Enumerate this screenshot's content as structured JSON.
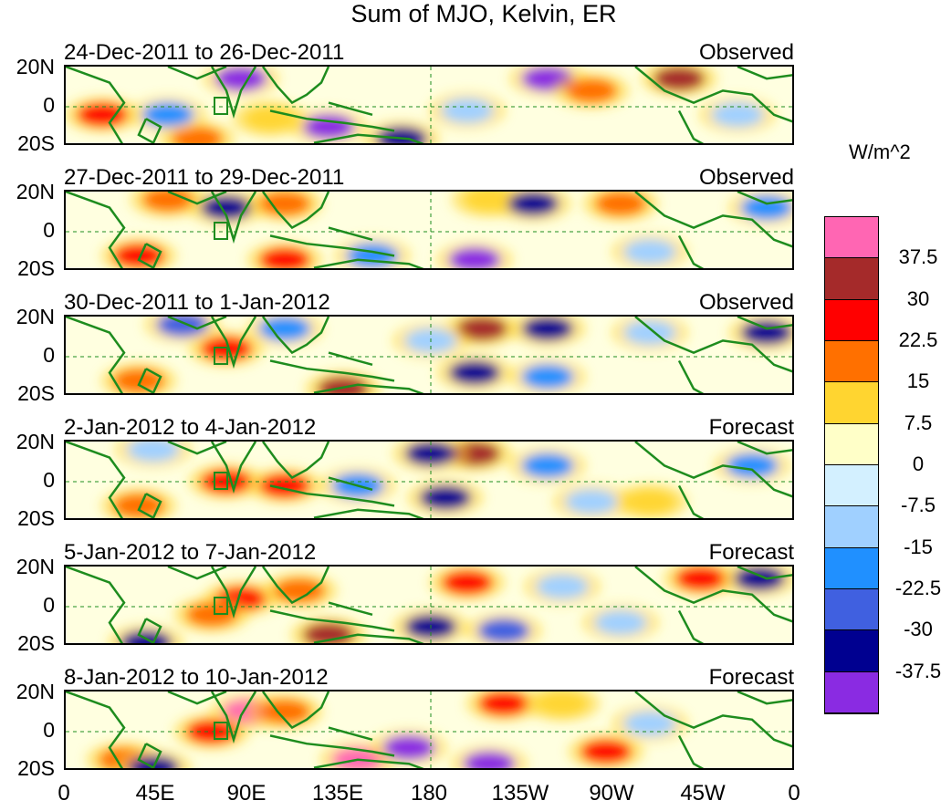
{
  "title": "Sum of MJO, Kelvin, ER",
  "colorbar": {
    "unit": "W/m^2",
    "colors": [
      "#ff66b3",
      "#a52a2a",
      "#ff0000",
      "#ff7000",
      "#ffd530",
      "#ffffc8",
      "#d3f0ff",
      "#a0d0ff",
      "#2090ff",
      "#4060e0",
      "#000090",
      "#8a2be2"
    ],
    "labels": [
      "37.5",
      "30",
      "22.5",
      "15",
      "7.5",
      "0",
      "-7.5",
      "-15",
      "-22.5",
      "-30",
      "-37.5"
    ]
  },
  "panels": [
    {
      "date_range": "24-Dec-2011 to 26-Dec-2011",
      "type": "Observed"
    },
    {
      "date_range": "27-Dec-2011 to 29-Dec-2011",
      "type": "Observed"
    },
    {
      "date_range": "30-Dec-2011 to 1-Jan-2012",
      "type": "Observed"
    },
    {
      "date_range": "2-Jan-2012 to 4-Jan-2012",
      "type": "Forecast"
    },
    {
      "date_range": "5-Jan-2012 to 7-Jan-2012",
      "type": "Forecast"
    },
    {
      "date_range": "8-Jan-2012 to 10-Jan-2012",
      "type": "Forecast"
    }
  ],
  "lat_labels": [
    "20N",
    "0",
    "20S"
  ],
  "lon_labels": [
    "0",
    "45E",
    "90E",
    "135E",
    "180",
    "135W",
    "90W",
    "45W",
    "0"
  ],
  "map_colors": {
    "coast": "#1e8c1e",
    "equator": "#1e8c1e"
  },
  "anomaly_blobs": [
    [
      [
        0.24,
        0.15,
        "#8a2be2"
      ],
      [
        0.66,
        0.15,
        "#8a2be2"
      ],
      [
        0.84,
        0.15,
        "#a52a2a"
      ],
      [
        0.05,
        0.6,
        "#ff0000"
      ],
      [
        0.18,
        0.9,
        "#ff7000"
      ],
      [
        0.36,
        0.75,
        "#8a2be2"
      ],
      [
        0.46,
        0.9,
        "#000090"
      ],
      [
        0.55,
        0.55,
        "#a0d0ff"
      ],
      [
        0.72,
        0.3,
        "#ff7000"
      ],
      [
        0.92,
        0.6,
        "#a0d0ff"
      ],
      [
        0.14,
        0.6,
        "#2090ff"
      ],
      [
        0.28,
        0.65,
        "#ffd530"
      ]
    ],
    [
      [
        0.14,
        0.1,
        "#ff7000"
      ],
      [
        0.22,
        0.2,
        "#000090"
      ],
      [
        0.3,
        0.15,
        "#ff7000"
      ],
      [
        0.58,
        0.1,
        "#ffd530"
      ],
      [
        0.64,
        0.15,
        "#000090"
      ],
      [
        0.76,
        0.15,
        "#ff7000"
      ],
      [
        0.1,
        0.8,
        "#ff0000"
      ],
      [
        0.3,
        0.85,
        "#ff0000"
      ],
      [
        0.42,
        0.8,
        "#2090ff"
      ],
      [
        0.56,
        0.85,
        "#8a2be2"
      ],
      [
        0.8,
        0.75,
        "#a0d0ff"
      ],
      [
        0.96,
        0.2,
        "#2090ff"
      ]
    ],
    [
      [
        0.16,
        0.1,
        "#4060e0"
      ],
      [
        0.22,
        0.4,
        "#ff0000"
      ],
      [
        0.3,
        0.15,
        "#2090ff"
      ],
      [
        0.57,
        0.15,
        "#a52a2a"
      ],
      [
        0.66,
        0.15,
        "#000090"
      ],
      [
        0.56,
        0.7,
        "#000090"
      ],
      [
        0.66,
        0.75,
        "#2090ff"
      ],
      [
        0.8,
        0.2,
        "#a0d0ff"
      ],
      [
        0.96,
        0.2,
        "#000090"
      ],
      [
        0.1,
        0.8,
        "#ff7000"
      ],
      [
        0.38,
        0.9,
        "#a52a2a"
      ],
      [
        0.5,
        0.3,
        "#a0d0ff"
      ]
    ],
    [
      [
        0.22,
        0.5,
        "#ff0000"
      ],
      [
        0.3,
        0.55,
        "#ff0000"
      ],
      [
        0.12,
        0.1,
        "#a0d0ff"
      ],
      [
        0.56,
        0.15,
        "#a52a2a"
      ],
      [
        0.5,
        0.15,
        "#000090"
      ],
      [
        0.52,
        0.7,
        "#000090"
      ],
      [
        0.66,
        0.3,
        "#2090ff"
      ],
      [
        0.8,
        0.75,
        "#ffd530"
      ],
      [
        0.94,
        0.3,
        "#2090ff"
      ],
      [
        0.1,
        0.8,
        "#ff7000"
      ],
      [
        0.4,
        0.55,
        "#2090ff"
      ],
      [
        0.72,
        0.75,
        "#a0d0ff"
      ]
    ],
    [
      [
        0.24,
        0.4,
        "#ff0000"
      ],
      [
        0.2,
        0.6,
        "#ff7000"
      ],
      [
        0.32,
        0.3,
        "#ff7000"
      ],
      [
        0.36,
        0.85,
        "#a52a2a"
      ],
      [
        0.55,
        0.2,
        "#ff0000"
      ],
      [
        0.5,
        0.75,
        "#000090"
      ],
      [
        0.6,
        0.8,
        "#4060e0"
      ],
      [
        0.87,
        0.15,
        "#ff0000"
      ],
      [
        0.95,
        0.15,
        "#000090"
      ],
      [
        0.11,
        0.95,
        "#000090"
      ],
      [
        0.76,
        0.7,
        "#a0d0ff"
      ],
      [
        0.68,
        0.25,
        "#a0d0ff"
      ]
    ],
    [
      [
        0.25,
        0.25,
        "#ff66b3"
      ],
      [
        0.2,
        0.5,
        "#ff0000"
      ],
      [
        0.3,
        0.25,
        "#ff7000"
      ],
      [
        0.4,
        0.85,
        "#ff66b3"
      ],
      [
        0.47,
        0.7,
        "#8a2be2"
      ],
      [
        0.58,
        0.9,
        "#8a2be2"
      ],
      [
        0.6,
        0.15,
        "#ff0000"
      ],
      [
        0.74,
        0.75,
        "#ff0000"
      ],
      [
        0.8,
        0.4,
        "#a0d0ff"
      ],
      [
        0.08,
        0.85,
        "#ff7000"
      ],
      [
        0.12,
        0.95,
        "#000090"
      ],
      [
        0.68,
        0.15,
        "#ffd530"
      ]
    ]
  ]
}
